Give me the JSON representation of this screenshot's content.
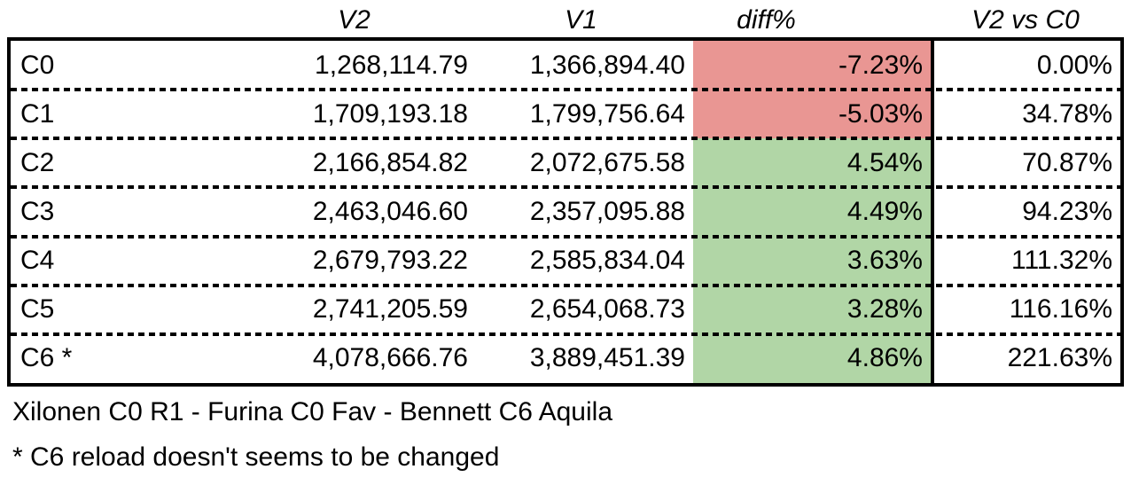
{
  "table": {
    "headers": {
      "label": "",
      "v2": "V2",
      "v1": "V1",
      "diff": "diff%",
      "ratio": "V2 vs C0"
    },
    "rows": [
      {
        "label": "C0",
        "v2": "1,268,114.79",
        "v1": "1,366,894.40",
        "diff": "-7.23%",
        "ratio": "0.00%",
        "diff_state": "negative"
      },
      {
        "label": "C1",
        "v2": "1,709,193.18",
        "v1": "1,799,756.64",
        "diff": "-5.03%",
        "ratio": "34.78%",
        "diff_state": "negative"
      },
      {
        "label": "C2",
        "v2": "2,166,854.82",
        "v1": "2,072,675.58",
        "diff": "4.54%",
        "ratio": "70.87%",
        "diff_state": "positive"
      },
      {
        "label": "C3",
        "v2": "2,463,046.60",
        "v1": "2,357,095.88",
        "diff": "4.49%",
        "ratio": "94.23%",
        "diff_state": "positive"
      },
      {
        "label": "C4",
        "v2": "2,679,793.22",
        "v1": "2,585,834.04",
        "diff": "3.63%",
        "ratio": "111.32%",
        "diff_state": "positive"
      },
      {
        "label": "C5",
        "v2": "2,741,205.59",
        "v1": "2,654,068.73",
        "diff": "3.28%",
        "ratio": "116.16%",
        "diff_state": "positive"
      },
      {
        "label": "C6 *",
        "v2": "4,078,666.76",
        "v1": "3,889,451.39",
        "diff": "4.86%",
        "ratio": "221.63%",
        "diff_state": "positive"
      }
    ]
  },
  "notes": {
    "line1": "Xilonen C0 R1 - Furina C0 Fav - Bennett C6 Aquila",
    "line2": "* C6 reload doesn't seems to be changed"
  },
  "colors": {
    "negative_fill": "#e99693",
    "positive_fill": "#b1d6a6",
    "border": "#000000",
    "text": "#000000",
    "background": "#ffffff"
  },
  "chart_data": {
    "type": "table",
    "title": "V2 vs V1 damage comparison per constellation",
    "columns": [
      "",
      "V2",
      "V1",
      "diff%",
      "V2 vs C0"
    ],
    "rows": [
      [
        "C0",
        1268114.79,
        1366894.4,
        -7.23,
        0.0
      ],
      [
        "C1",
        1709193.18,
        1799756.64,
        -5.03,
        34.78
      ],
      [
        "C2",
        2166854.82,
        2072675.58,
        4.54,
        70.87
      ],
      [
        "C3",
        2463046.6,
        2357095.88,
        4.49,
        94.23
      ],
      [
        "C4",
        2679793.22,
        2585834.04,
        3.63,
        111.32
      ],
      [
        "C5",
        2741205.59,
        2654068.73,
        3.28,
        116.16
      ],
      [
        "C6 *",
        4078666.76,
        3889451.39,
        4.86,
        221.63
      ]
    ],
    "cell_highlight_rule": "diff% cell red when negative, green when positive",
    "annotations": [
      "Xilonen C0 R1 - Furina C0 Fav - Bennett C6 Aquila",
      "* C6 reload doesn't seems to be changed"
    ]
  }
}
